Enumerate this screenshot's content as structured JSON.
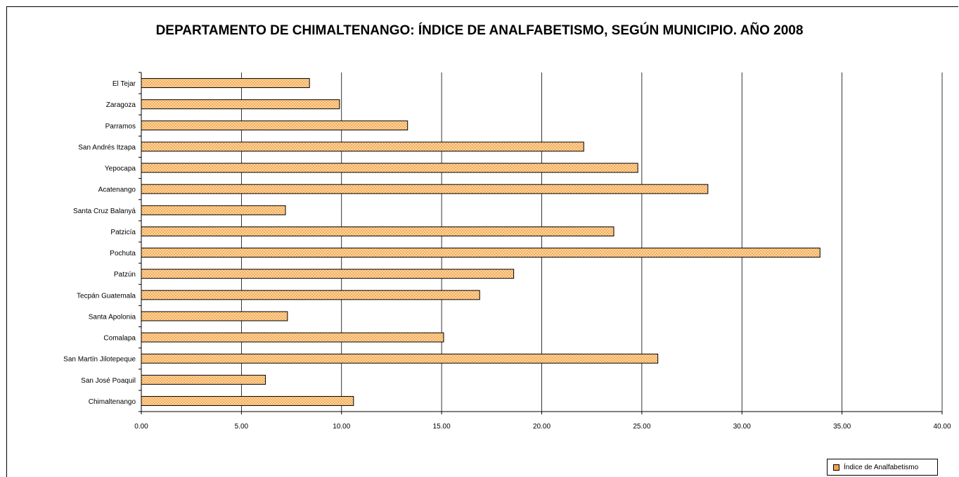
{
  "chart_data": {
    "type": "bar",
    "orientation": "horizontal",
    "title": "DEPARTAMENTO DE CHIMALTENANGO: ÍNDICE DE ANALFABETISMO, SEGÚN MUNICIPIO. AÑO 2008",
    "xlabel": "",
    "ylabel": "",
    "categories": [
      "El Tejar",
      "Zaragoza",
      "Parramos",
      "San Andrés Itzapa",
      "Yepocapa",
      "Acatenango",
      "Santa Cruz Balanyá",
      "Patzicía",
      "Pochuta",
      "Patzún",
      "Tecpán Guatemala",
      "Santa Apolonia",
      "Comalapa",
      "San Martín Jilotepeque",
      "San José Poaquil",
      "Chimaltenango"
    ],
    "series": [
      {
        "name": "Índice de Analfabetismo",
        "values": [
          8.4,
          9.9,
          13.3,
          22.1,
          24.8,
          28.3,
          7.2,
          23.6,
          33.9,
          18.6,
          16.9,
          7.3,
          15.1,
          25.8,
          6.2,
          10.6
        ]
      }
    ],
    "xlim": [
      0,
      40
    ],
    "xticks": [
      "0.00",
      "5.00",
      "10.00",
      "15.00",
      "20.00",
      "25.00",
      "30.00",
      "35.00",
      "40.00"
    ],
    "grid": "vertical",
    "legend": "bottom-right",
    "colors": {
      "bar_fill": "#f5a24b",
      "bar_hatch": "#fbe0b0",
      "bar_edge": "#000000",
      "grid": "#000000"
    }
  }
}
